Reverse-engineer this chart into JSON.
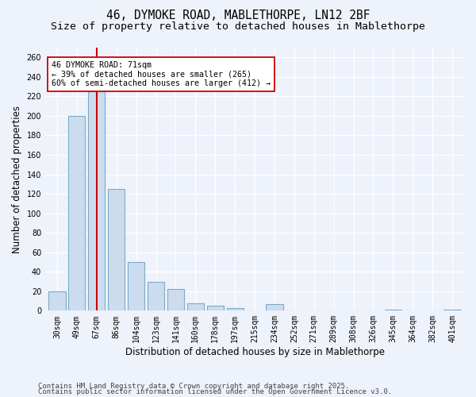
{
  "title_line1": "46, DYMOKE ROAD, MABLETHORPE, LN12 2BF",
  "title_line2": "Size of property relative to detached houses in Mablethorpe",
  "xlabel": "Distribution of detached houses by size in Mablethorpe",
  "ylabel": "Number of detached properties",
  "footer_line1": "Contains HM Land Registry data © Crown copyright and database right 2025.",
  "footer_line2": "Contains public sector information licensed under the Open Government Licence v3.0.",
  "categories": [
    "30sqm",
    "49sqm",
    "67sqm",
    "86sqm",
    "104sqm",
    "123sqm",
    "141sqm",
    "160sqm",
    "178sqm",
    "197sqm",
    "215sqm",
    "234sqm",
    "252sqm",
    "271sqm",
    "289sqm",
    "308sqm",
    "326sqm",
    "345sqm",
    "364sqm",
    "382sqm",
    "401sqm"
  ],
  "values": [
    20,
    200,
    225,
    125,
    50,
    30,
    22,
    8,
    5,
    3,
    0,
    7,
    0,
    0,
    0,
    0,
    0,
    1,
    0,
    0,
    1
  ],
  "bar_color": "#ccdcee",
  "bar_edge_color": "#7aaac8",
  "highlight_bar_index": 2,
  "highlight_line_color": "#cc0000",
  "annotation_line1": "46 DYMOKE ROAD: 71sqm",
  "annotation_line2": "← 39% of detached houses are smaller (265)",
  "annotation_line3": "60% of semi-detached houses are larger (412) →",
  "annotation_box_color": "#ffffff",
  "annotation_box_edge_color": "#cc0000",
  "ylim": [
    0,
    270
  ],
  "background_color": "#eef2fa",
  "grid_color": "#ffffff",
  "title_fontsize": 10.5,
  "subtitle_fontsize": 9.5,
  "axis_label_fontsize": 8.5,
  "tick_fontsize": 7,
  "footer_fontsize": 6.5
}
